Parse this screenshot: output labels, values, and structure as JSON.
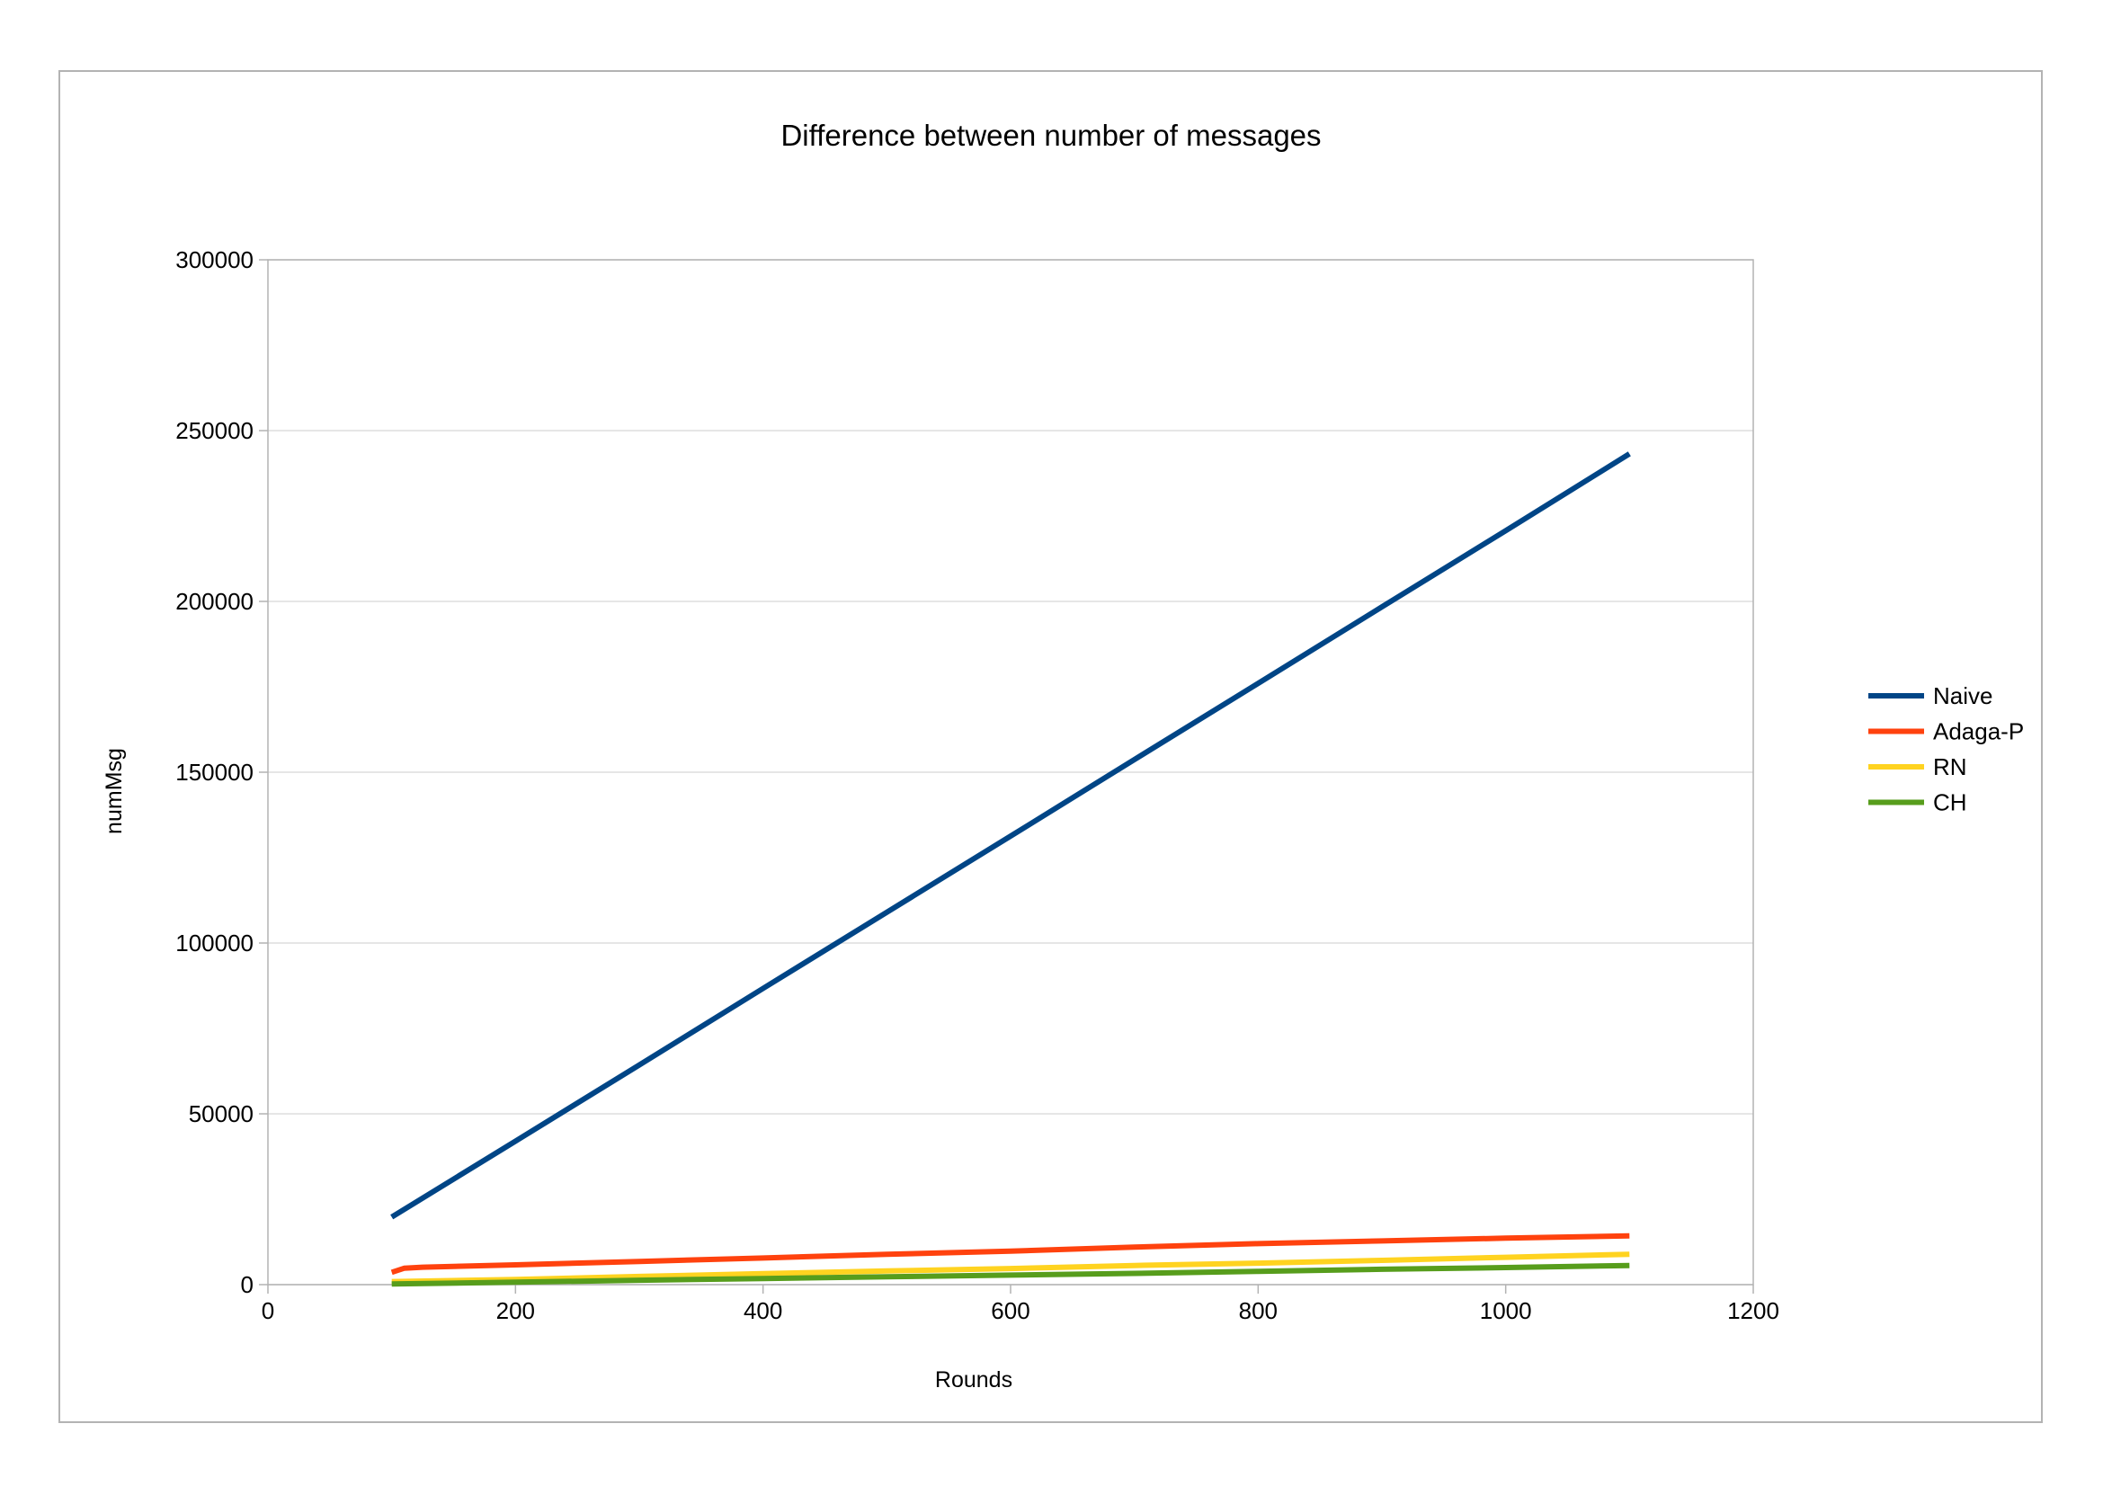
{
  "chart_data": {
    "type": "line",
    "title": "Difference between number of messages",
    "xlabel": "Rounds",
    "ylabel": "numMsg",
    "xlim": [
      0,
      1200
    ],
    "ylim": [
      0,
      300000
    ],
    "x_ticks": [
      0,
      200,
      400,
      600,
      800,
      1000,
      1200
    ],
    "y_ticks": [
      0,
      50000,
      100000,
      150000,
      200000,
      250000,
      300000
    ],
    "grid": "horizontal",
    "legend_position": "right",
    "series": [
      {
        "name": "Naive",
        "color": "#004586",
        "points": [
          [
            100,
            19800
          ],
          [
            200,
            42000
          ],
          [
            300,
            64300
          ],
          [
            400,
            86700
          ],
          [
            500,
            109000
          ],
          [
            600,
            131300
          ],
          [
            700,
            153700
          ],
          [
            800,
            176000
          ],
          [
            900,
            198400
          ],
          [
            1000,
            220700
          ],
          [
            1100,
            243200
          ]
        ]
      },
      {
        "name": "Adaga-P",
        "color": "#ff420e",
        "points": [
          [
            100,
            3600
          ],
          [
            110,
            4800
          ],
          [
            125,
            5100
          ],
          [
            200,
            5800
          ],
          [
            300,
            6800
          ],
          [
            400,
            7800
          ],
          [
            500,
            8900
          ],
          [
            600,
            9800
          ],
          [
            700,
            11000
          ],
          [
            800,
            12000
          ],
          [
            900,
            12800
          ],
          [
            1000,
            13600
          ],
          [
            1100,
            14300
          ]
        ]
      },
      {
        "name": "RN",
        "color": "#ffd320",
        "points": [
          [
            100,
            900
          ],
          [
            200,
            1500
          ],
          [
            300,
            2400
          ],
          [
            400,
            3200
          ],
          [
            500,
            4000
          ],
          [
            600,
            4700
          ],
          [
            700,
            5600
          ],
          [
            800,
            6300
          ],
          [
            900,
            7100
          ],
          [
            1000,
            8000
          ],
          [
            1100,
            8900
          ]
        ]
      },
      {
        "name": "CH",
        "color": "#579d1c",
        "points": [
          [
            100,
            200
          ],
          [
            200,
            700
          ],
          [
            300,
            1300
          ],
          [
            400,
            1800
          ],
          [
            500,
            2300
          ],
          [
            600,
            2800
          ],
          [
            700,
            3300
          ],
          [
            800,
            3900
          ],
          [
            900,
            4500
          ],
          [
            1000,
            5000
          ],
          [
            1100,
            5600
          ]
        ]
      }
    ]
  }
}
